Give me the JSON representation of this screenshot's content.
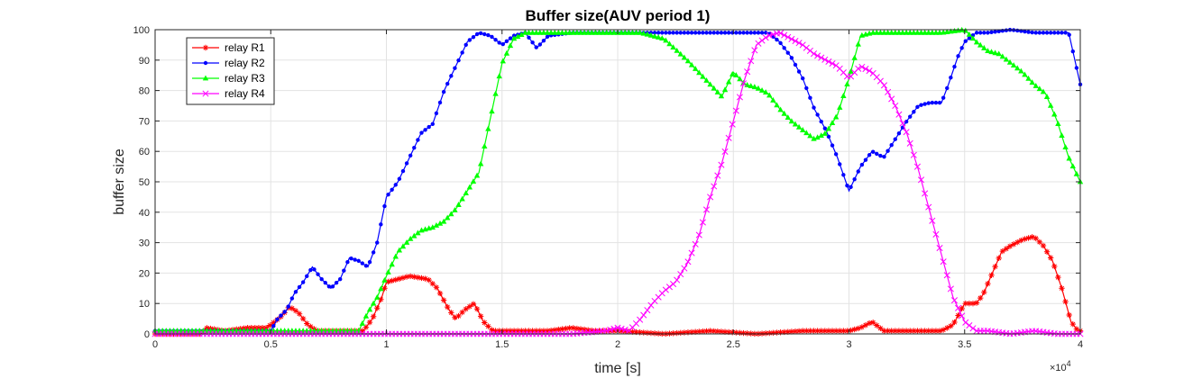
{
  "chart_data": {
    "type": "line",
    "title": "Buffer size(AUV period 1)",
    "xlabel": "time [s]",
    "ylabel": "buffer size",
    "xlim": [
      0,
      40000
    ],
    "ylim": [
      0,
      100
    ],
    "x_tick_values": [
      0,
      5000,
      10000,
      15000,
      20000,
      25000,
      30000,
      35000,
      40000
    ],
    "x_tick_labels": [
      "0",
      "0.5",
      "1",
      "1.5",
      "2",
      "2.5",
      "3",
      "3.5",
      "4"
    ],
    "x_exponent_base": "×10",
    "x_exponent_power": "4",
    "y_ticks": [
      0,
      10,
      20,
      30,
      40,
      50,
      60,
      70,
      80,
      90,
      100
    ],
    "grid": true,
    "legend_position": "top-left",
    "series": [
      {
        "name": "relay R1",
        "color": "#ff0000",
        "marker": "asterisk",
        "points": [
          [
            0,
            0
          ],
          [
            2000,
            0
          ],
          [
            2200,
            2
          ],
          [
            3000,
            1
          ],
          [
            4000,
            2
          ],
          [
            4800,
            2
          ],
          [
            5000,
            3
          ],
          [
            5500,
            6
          ],
          [
            5800,
            9
          ],
          [
            6200,
            7
          ],
          [
            6600,
            3
          ],
          [
            7000,
            1
          ],
          [
            8500,
            1
          ],
          [
            9000,
            1
          ],
          [
            9400,
            5
          ],
          [
            9800,
            12
          ],
          [
            10000,
            17
          ],
          [
            10500,
            18
          ],
          [
            11000,
            19
          ],
          [
            11800,
            18
          ],
          [
            12200,
            15
          ],
          [
            12700,
            8
          ],
          [
            13000,
            5
          ],
          [
            13400,
            8
          ],
          [
            13800,
            10
          ],
          [
            14200,
            4
          ],
          [
            14600,
            1
          ],
          [
            16000,
            1
          ],
          [
            17000,
            1
          ],
          [
            18000,
            2
          ],
          [
            19000,
            1
          ],
          [
            20000,
            1
          ],
          [
            22000,
            0
          ],
          [
            24000,
            1
          ],
          [
            26000,
            0
          ],
          [
            28000,
            1
          ],
          [
            29000,
            1
          ],
          [
            30000,
            1
          ],
          [
            30500,
            2
          ],
          [
            31000,
            4
          ],
          [
            31500,
            1
          ],
          [
            33000,
            1
          ],
          [
            34000,
            1
          ],
          [
            34500,
            3
          ],
          [
            35000,
            10
          ],
          [
            35500,
            10
          ],
          [
            35800,
            13
          ],
          [
            36200,
            20
          ],
          [
            36600,
            27
          ],
          [
            37000,
            29
          ],
          [
            37500,
            31
          ],
          [
            38000,
            32
          ],
          [
            38400,
            29
          ],
          [
            38800,
            24
          ],
          [
            39200,
            15
          ],
          [
            39600,
            4
          ],
          [
            39900,
            1
          ],
          [
            40000,
            1
          ]
        ]
      },
      {
        "name": "relay R2",
        "color": "#0000ff",
        "marker": "dot",
        "points": [
          [
            0,
            1
          ],
          [
            2000,
            1
          ],
          [
            3000,
            1
          ],
          [
            4000,
            1
          ],
          [
            5000,
            1
          ],
          [
            5300,
            5
          ],
          [
            5700,
            8
          ],
          [
            6000,
            13
          ],
          [
            6400,
            17
          ],
          [
            6800,
            22
          ],
          [
            7200,
            18
          ],
          [
            7600,
            15
          ],
          [
            8000,
            18
          ],
          [
            8400,
            25
          ],
          [
            8800,
            24
          ],
          [
            9200,
            22
          ],
          [
            9600,
            30
          ],
          [
            10000,
            45
          ],
          [
            10500,
            50
          ],
          [
            11000,
            58
          ],
          [
            11500,
            66
          ],
          [
            12000,
            69
          ],
          [
            12500,
            80
          ],
          [
            13000,
            88
          ],
          [
            13500,
            96
          ],
          [
            14000,
            99
          ],
          [
            14500,
            98
          ],
          [
            15000,
            95
          ],
          [
            15500,
            98
          ],
          [
            16000,
            99
          ],
          [
            16500,
            94
          ],
          [
            17000,
            98
          ],
          [
            18000,
            99
          ],
          [
            19000,
            99
          ],
          [
            20000,
            99
          ],
          [
            22000,
            99
          ],
          [
            25000,
            99
          ],
          [
            26500,
            99
          ],
          [
            27000,
            96
          ],
          [
            27500,
            91
          ],
          [
            28000,
            84
          ],
          [
            28500,
            74
          ],
          [
            29000,
            67
          ],
          [
            29500,
            58
          ],
          [
            30000,
            47
          ],
          [
            30500,
            55
          ],
          [
            31000,
            60
          ],
          [
            31500,
            58
          ],
          [
            32000,
            64
          ],
          [
            32500,
            70
          ],
          [
            33000,
            75
          ],
          [
            33500,
            76
          ],
          [
            34000,
            76
          ],
          [
            34300,
            82
          ],
          [
            34700,
            91
          ],
          [
            35000,
            96
          ],
          [
            35500,
            99
          ],
          [
            36000,
            99
          ],
          [
            37000,
            100
          ],
          [
            38000,
            99
          ],
          [
            39000,
            99
          ],
          [
            39500,
            99
          ],
          [
            40000,
            82
          ]
        ]
      },
      {
        "name": "relay R3",
        "color": "#00ff00",
        "marker": "triangle",
        "points": [
          [
            0,
            1
          ],
          [
            3000,
            1
          ],
          [
            5000,
            1
          ],
          [
            6000,
            1
          ],
          [
            8000,
            1
          ],
          [
            8800,
            1
          ],
          [
            9200,
            7
          ],
          [
            9600,
            12
          ],
          [
            10000,
            19
          ],
          [
            10500,
            27
          ],
          [
            11000,
            31
          ],
          [
            11500,
            34
          ],
          [
            12000,
            35
          ],
          [
            12500,
            37
          ],
          [
            13000,
            41
          ],
          [
            13500,
            47
          ],
          [
            14000,
            53
          ],
          [
            14500,
            71
          ],
          [
            15000,
            89
          ],
          [
            15500,
            97
          ],
          [
            16000,
            99
          ],
          [
            17000,
            99
          ],
          [
            18000,
            99
          ],
          [
            19000,
            99
          ],
          [
            20000,
            99
          ],
          [
            21000,
            99
          ],
          [
            22000,
            97
          ],
          [
            23000,
            90
          ],
          [
            24000,
            82
          ],
          [
            24500,
            78
          ],
          [
            25000,
            86
          ],
          [
            25500,
            82
          ],
          [
            26000,
            81
          ],
          [
            26500,
            79
          ],
          [
            27000,
            74
          ],
          [
            27500,
            70
          ],
          [
            28000,
            67
          ],
          [
            28500,
            64
          ],
          [
            29000,
            66
          ],
          [
            29500,
            72
          ],
          [
            30000,
            84
          ],
          [
            30500,
            98
          ],
          [
            31000,
            99
          ],
          [
            32000,
            99
          ],
          [
            33000,
            99
          ],
          [
            34000,
            99
          ],
          [
            35000,
            100
          ],
          [
            35500,
            96
          ],
          [
            36000,
            93
          ],
          [
            36500,
            92
          ],
          [
            37000,
            89
          ],
          [
            37500,
            86
          ],
          [
            38000,
            82
          ],
          [
            38500,
            79
          ],
          [
            39000,
            70
          ],
          [
            39500,
            58
          ],
          [
            40000,
            50
          ]
        ]
      },
      {
        "name": "relay R4",
        "color": "#ff00ff",
        "marker": "x",
        "points": [
          [
            0,
            0
          ],
          [
            5000,
            0
          ],
          [
            10000,
            0
          ],
          [
            15000,
            0
          ],
          [
            18000,
            0
          ],
          [
            19500,
            1
          ],
          [
            20000,
            2
          ],
          [
            20500,
            1
          ],
          [
            21000,
            5
          ],
          [
            21500,
            10
          ],
          [
            22000,
            14
          ],
          [
            22500,
            17
          ],
          [
            23000,
            23
          ],
          [
            23500,
            32
          ],
          [
            24000,
            45
          ],
          [
            24500,
            56
          ],
          [
            25000,
            70
          ],
          [
            25500,
            84
          ],
          [
            26000,
            95
          ],
          [
            26500,
            98
          ],
          [
            27000,
            99
          ],
          [
            27500,
            97
          ],
          [
            28000,
            95
          ],
          [
            28500,
            92
          ],
          [
            29000,
            90
          ],
          [
            29500,
            88
          ],
          [
            30000,
            84
          ],
          [
            30500,
            88
          ],
          [
            31000,
            86
          ],
          [
            31500,
            82
          ],
          [
            32000,
            75
          ],
          [
            32500,
            66
          ],
          [
            33000,
            54
          ],
          [
            33500,
            40
          ],
          [
            34000,
            26
          ],
          [
            34500,
            12
          ],
          [
            35000,
            4
          ],
          [
            35500,
            1
          ],
          [
            36000,
            1
          ],
          [
            37000,
            0
          ],
          [
            38000,
            1
          ],
          [
            39000,
            0
          ],
          [
            40000,
            0
          ]
        ]
      }
    ]
  }
}
